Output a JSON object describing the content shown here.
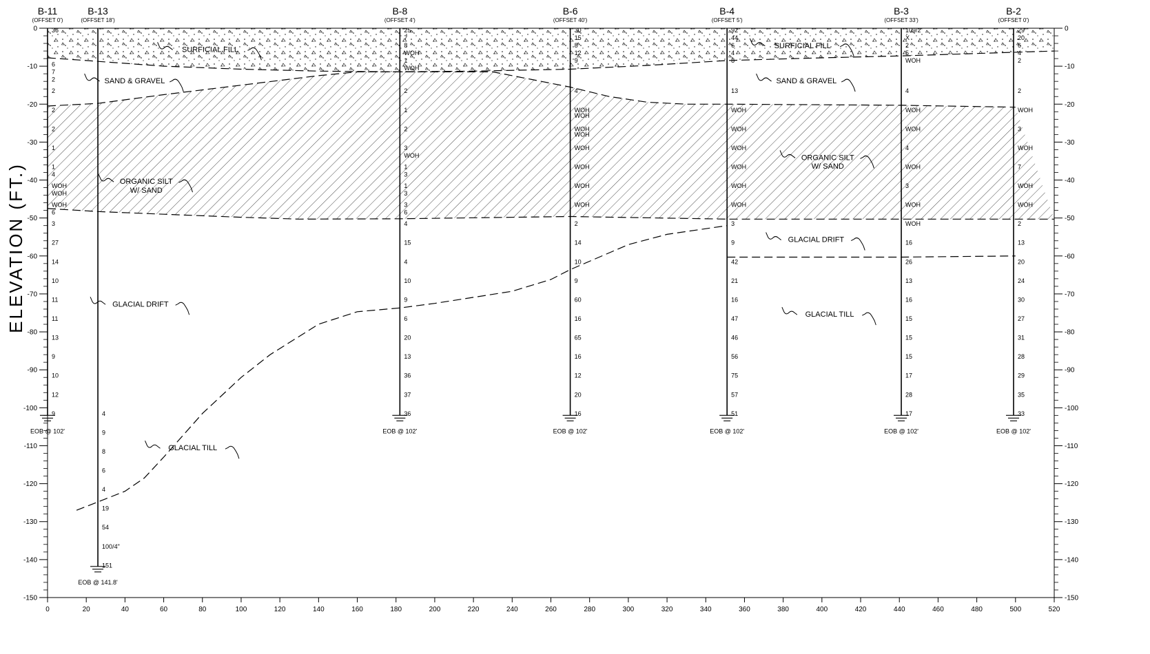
{
  "title": "ELEVATION (FT.)",
  "axes": {
    "x_min": 0,
    "x_max": 520,
    "x_step": 20,
    "y_min": -150,
    "y_max": 0,
    "y_step": 10,
    "x_labels": [
      "0",
      "20",
      "40",
      "60",
      "80",
      "100",
      "120",
      "140",
      "160",
      "180",
      "200",
      "220",
      "240",
      "260",
      "280",
      "300",
      "320",
      "340",
      "360",
      "380",
      "400",
      "420",
      "440",
      "460",
      "480",
      "500",
      "520"
    ],
    "y_labels": [
      "0",
      "-10",
      "-20",
      "-30",
      "-40",
      "-50",
      "-60",
      "-70",
      "-80",
      "-90",
      "-100",
      "-110",
      "-120",
      "-130",
      "-140",
      "-150"
    ]
  },
  "borings": [
    {
      "id": "B-11",
      "offset": "(OFFSET 0')",
      "station": 0,
      "bottom": -102,
      "eob": "EOB @ 102'",
      "blows": [
        [
          "36",
          0
        ],
        [
          "6",
          -9
        ],
        [
          "7",
          -11
        ],
        [
          "2",
          -13
        ],
        [
          "2",
          -16
        ],
        [
          "2",
          -21
        ],
        [
          "2",
          -26
        ],
        [
          "1",
          -31
        ],
        [
          "1",
          -36
        ],
        [
          "4",
          -38
        ],
        [
          "WOH",
          -41
        ],
        [
          "WOH",
          -43
        ],
        [
          "WOH",
          -46
        ],
        [
          "6",
          -48
        ],
        [
          "3",
          -51
        ],
        [
          "27",
          -56
        ],
        [
          "14",
          -61
        ],
        [
          "10",
          -66
        ],
        [
          "11",
          -71
        ],
        [
          "11",
          -76
        ],
        [
          "13",
          -81
        ],
        [
          "9",
          -86
        ],
        [
          "10",
          -91
        ],
        [
          "12",
          -96
        ],
        [
          "9",
          -101
        ]
      ]
    },
    {
      "id": "B-13",
      "offset": "(OFFSET 18')",
      "station": 26,
      "bottom": -141.8,
      "eob": "EOB @ 141.8'",
      "blows": [
        [
          "4",
          -101
        ],
        [
          "9",
          -106
        ],
        [
          "8",
          -111
        ],
        [
          "6",
          -116
        ],
        [
          "4",
          -121
        ],
        [
          "19",
          -126
        ],
        [
          "54",
          -131
        ],
        [
          "100/4\"",
          -136
        ],
        [
          "151",
          -141
        ]
      ]
    },
    {
      "id": "B-8",
      "offset": "(OFFSET 4')",
      "station": 182,
      "bottom": -102,
      "eob": "EOB @ 102'",
      "blows": [
        [
          "25",
          0
        ],
        [
          "7",
          -2
        ],
        [
          "8",
          -4
        ],
        [
          "WOH",
          -6
        ],
        [
          "1",
          -8
        ],
        [
          "WOH",
          -10
        ],
        [
          "2",
          -16
        ],
        [
          "1",
          -21
        ],
        [
          "2",
          -26
        ],
        [
          "3",
          -31
        ],
        [
          "WOH",
          -33
        ],
        [
          "1",
          -36
        ],
        [
          "3",
          -38
        ],
        [
          "1",
          -41
        ],
        [
          "3",
          -43
        ],
        [
          "3",
          -46
        ],
        [
          "6",
          -48
        ],
        [
          "4",
          -51
        ],
        [
          "15",
          -56
        ],
        [
          "4",
          -61
        ],
        [
          "10",
          -66
        ],
        [
          "9",
          -71
        ],
        [
          "6",
          -76
        ],
        [
          "20",
          -81
        ],
        [
          "13",
          -86
        ],
        [
          "36",
          -91
        ],
        [
          "37",
          -96
        ],
        [
          "36",
          -101
        ]
      ]
    },
    {
      "id": "B-6",
      "offset": "(OFFSET 40')",
      "station": 270,
      "bottom": -102,
      "eob": "EOB @ 102'",
      "blows": [
        [
          "30",
          0
        ],
        [
          "15",
          -2
        ],
        [
          "8",
          -4
        ],
        [
          "12",
          -6
        ],
        [
          "9",
          -8
        ],
        [
          "4",
          -16
        ],
        [
          "WOH",
          -21
        ],
        [
          "WOH",
          -22.5
        ],
        [
          "WOH",
          -26
        ],
        [
          "WOH",
          -27.5
        ],
        [
          "WOH",
          -31
        ],
        [
          "WOH",
          -36
        ],
        [
          "WOH",
          -41
        ],
        [
          "WOH",
          -46
        ],
        [
          "2",
          -51
        ],
        [
          "14",
          -56
        ],
        [
          "10",
          -61
        ],
        [
          "9",
          -66
        ],
        [
          "60",
          -71
        ],
        [
          "16",
          -76
        ],
        [
          "65",
          -81
        ],
        [
          "16",
          -86
        ],
        [
          "12",
          -91
        ],
        [
          "20",
          -96
        ],
        [
          "16",
          -101
        ]
      ]
    },
    {
      "id": "B-4",
      "offset": "(OFFSET 5')",
      "station": 351,
      "bottom": -102,
      "eob": "EOB @ 102'",
      "blows": [
        [
          "92",
          0
        ],
        [
          "44",
          -2
        ],
        [
          "6",
          -4
        ],
        [
          "4",
          -6
        ],
        [
          "8",
          -8
        ],
        [
          "13",
          -16
        ],
        [
          "WOH",
          -21
        ],
        [
          "WOH",
          -26
        ],
        [
          "WOH",
          -31
        ],
        [
          "WOH",
          -36
        ],
        [
          "WOH",
          -41
        ],
        [
          "WOH",
          -46
        ],
        [
          "3",
          -51
        ],
        [
          "9",
          -56
        ],
        [
          "42",
          -61
        ],
        [
          "21",
          -66
        ],
        [
          "16",
          -71
        ],
        [
          "47",
          -76
        ],
        [
          "46",
          -81
        ],
        [
          "56",
          -86
        ],
        [
          "75",
          -91
        ],
        [
          "57",
          -96
        ],
        [
          "51",
          -101
        ]
      ]
    },
    {
      "id": "B-3",
      "offset": "(OFFSET 33')",
      "station": 441,
      "bottom": -102,
      "eob": "EOB @ 102'",
      "blows": [
        [
          "109/2",
          0
        ],
        [
          "X",
          -2
        ],
        [
          "2",
          -4
        ],
        [
          "5",
          -6
        ],
        [
          "WOH",
          -8
        ],
        [
          "4",
          -16
        ],
        [
          "WOH",
          -21
        ],
        [
          "WOH",
          -26
        ],
        [
          "4",
          -31
        ],
        [
          "WOH",
          -36
        ],
        [
          "3",
          -41
        ],
        [
          "WOH",
          -46
        ],
        [
          "WOH",
          -51
        ],
        [
          "16",
          -56
        ],
        [
          "26",
          -61
        ],
        [
          "13",
          -66
        ],
        [
          "16",
          -71
        ],
        [
          "15",
          -76
        ],
        [
          "15",
          -81
        ],
        [
          "15",
          -86
        ],
        [
          "17",
          -91
        ],
        [
          "28",
          -96
        ],
        [
          "17",
          -101
        ]
      ]
    },
    {
      "id": "B-2",
      "offset": "(OFFSET 0')",
      "station": 499,
      "bottom": -102,
      "eob": "EOB @ 102'",
      "blows": [
        [
          "29",
          0
        ],
        [
          "20",
          -2
        ],
        [
          "6",
          -4
        ],
        [
          "4",
          -6
        ],
        [
          "2",
          -8
        ],
        [
          "2",
          -16
        ],
        [
          "WOH",
          -21
        ],
        [
          "3",
          -26
        ],
        [
          "WOH",
          -31
        ],
        [
          "7",
          -36
        ],
        [
          "WOH",
          -41
        ],
        [
          "WOH",
          -46
        ],
        [
          "2",
          -51
        ],
        [
          "13",
          -56
        ],
        [
          "20",
          -61
        ],
        [
          "24",
          -66
        ],
        [
          "30",
          -71
        ],
        [
          "27",
          -76
        ],
        [
          "31",
          -81
        ],
        [
          "28",
          -86
        ],
        [
          "29",
          -91
        ],
        [
          "35",
          -96
        ],
        [
          "33",
          -101
        ]
      ]
    }
  ],
  "contacts": {
    "fill_bottom": [
      [
        0,
        -7.8
      ],
      [
        20,
        -8.5
      ],
      [
        60,
        -10
      ],
      [
        100,
        -10.8
      ],
      [
        140,
        -11.3
      ],
      [
        180,
        -11.5
      ],
      [
        220,
        -11.3
      ],
      [
        270,
        -10.8
      ],
      [
        310,
        -9.8
      ],
      [
        351,
        -8.5
      ],
      [
        400,
        -7.8
      ],
      [
        441,
        -7.3
      ],
      [
        520,
        -6
      ]
    ],
    "silt_top": [
      [
        0,
        -20.5
      ],
      [
        26,
        -19.8
      ],
      [
        60,
        -17.5
      ],
      [
        100,
        -15
      ],
      [
        140,
        -12.5
      ],
      [
        160,
        -11.5
      ],
      [
        230,
        -11.5
      ],
      [
        250,
        -13.5
      ],
      [
        270,
        -15.5
      ],
      [
        290,
        -18
      ],
      [
        310,
        -19.5
      ],
      [
        330,
        -20
      ],
      [
        351,
        -20
      ],
      [
        441,
        -20.3
      ],
      [
        500,
        -20.8
      ]
    ],
    "silt_bottom": [
      [
        0,
        -47.5
      ],
      [
        26,
        -48.3
      ],
      [
        60,
        -49
      ],
      [
        100,
        -49.8
      ],
      [
        130,
        -50.3
      ],
      [
        182,
        -50.2
      ],
      [
        270,
        -49.6
      ],
      [
        351,
        -50.3
      ],
      [
        441,
        -50.3
      ],
      [
        520,
        -50.3
      ]
    ],
    "till_top": [
      [
        15,
        -127
      ],
      [
        26,
        -124.8
      ],
      [
        40,
        -122
      ],
      [
        50,
        -118.5
      ],
      [
        60,
        -113
      ],
      [
        80,
        -101.5
      ],
      [
        100,
        -92
      ],
      [
        115,
        -86
      ],
      [
        140,
        -78
      ],
      [
        160,
        -74.7
      ],
      [
        182,
        -73.7
      ],
      [
        200,
        -72.5
      ],
      [
        240,
        -69.3
      ],
      [
        260,
        -66.2
      ],
      [
        270,
        -63.6
      ],
      [
        300,
        -57
      ],
      [
        320,
        -54.3
      ],
      [
        351,
        -52
      ]
    ],
    "drift_till_right": [
      [
        351,
        -60.3
      ],
      [
        441,
        -60.3
      ],
      [
        500,
        -60
      ]
    ]
  },
  "layer_labels": [
    {
      "text": "SURFICIAL FILL",
      "x": 84,
      "y": -5.5
    },
    {
      "text": "SURFICIAL FILL",
      "x": 390,
      "y": -4.5
    },
    {
      "text": "SAND & GRAVEL",
      "x": 45,
      "y": -13.8
    },
    {
      "text": "SAND & GRAVEL",
      "x": 392,
      "y": -13.8
    },
    {
      "text": "ORGANIC SILT",
      "x": 51,
      "y": -40.3
    },
    {
      "text": "W/ SAND",
      "x": 51,
      "y": -42.6
    },
    {
      "text": "ORGANIC SILT",
      "x": 403,
      "y": -34
    },
    {
      "text": "W/ SAND",
      "x": 403,
      "y": -36.3
    },
    {
      "text": "GLACIAL DRIFT",
      "x": 48,
      "y": -72.6
    },
    {
      "text": "GLACIAL DRIFT",
      "x": 397,
      "y": -55.6
    },
    {
      "text": "GLACIAL TILL",
      "x": 404,
      "y": -75.3
    },
    {
      "text": "GLACIAL TILL",
      "x": 75,
      "y": -110.5
    }
  ]
}
